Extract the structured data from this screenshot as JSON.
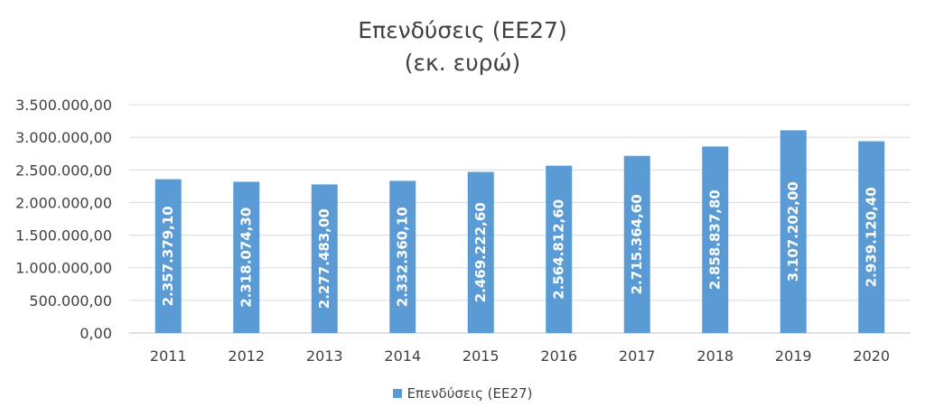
{
  "chart_data": {
    "type": "bar",
    "title": "Επενδύσεις (ΕΕ27)",
    "subtitle": "(εκ. ευρώ)",
    "categories": [
      "2011",
      "2012",
      "2013",
      "2014",
      "2015",
      "2016",
      "2017",
      "2018",
      "2019",
      "2020"
    ],
    "series": [
      {
        "name": "Επενδύσεις (ΕΕ27)",
        "values": [
          2357379.1,
          2318074.3,
          2277483.0,
          2332360.1,
          2469222.6,
          2564812.6,
          2715364.6,
          2858837.8,
          3107202.0,
          2939120.4
        ],
        "data_labels": [
          "2.357.379,10",
          "2.318.074,30",
          "2.277.483,00",
          "2.332.360,10",
          "2.469.222,60",
          "2.564.812,60",
          "2.715.364,60",
          "2.858.837,80",
          "3.107.202,00",
          "2.939.120,40"
        ]
      }
    ],
    "y_ticks": [
      "0,00",
      "500.000,00",
      "1.000.000,00",
      "1.500.000,00",
      "2.000.000,00",
      "2.500.000,00",
      "3.000.000,00",
      "3.500.000,00"
    ],
    "ylim": [
      0,
      3500000
    ],
    "grid": true,
    "legend": "bottom",
    "colors": {
      "bar": "#5b9bd5",
      "grid": "#d9d9d9",
      "text": "#404040",
      "label": "#ffffff"
    }
  }
}
